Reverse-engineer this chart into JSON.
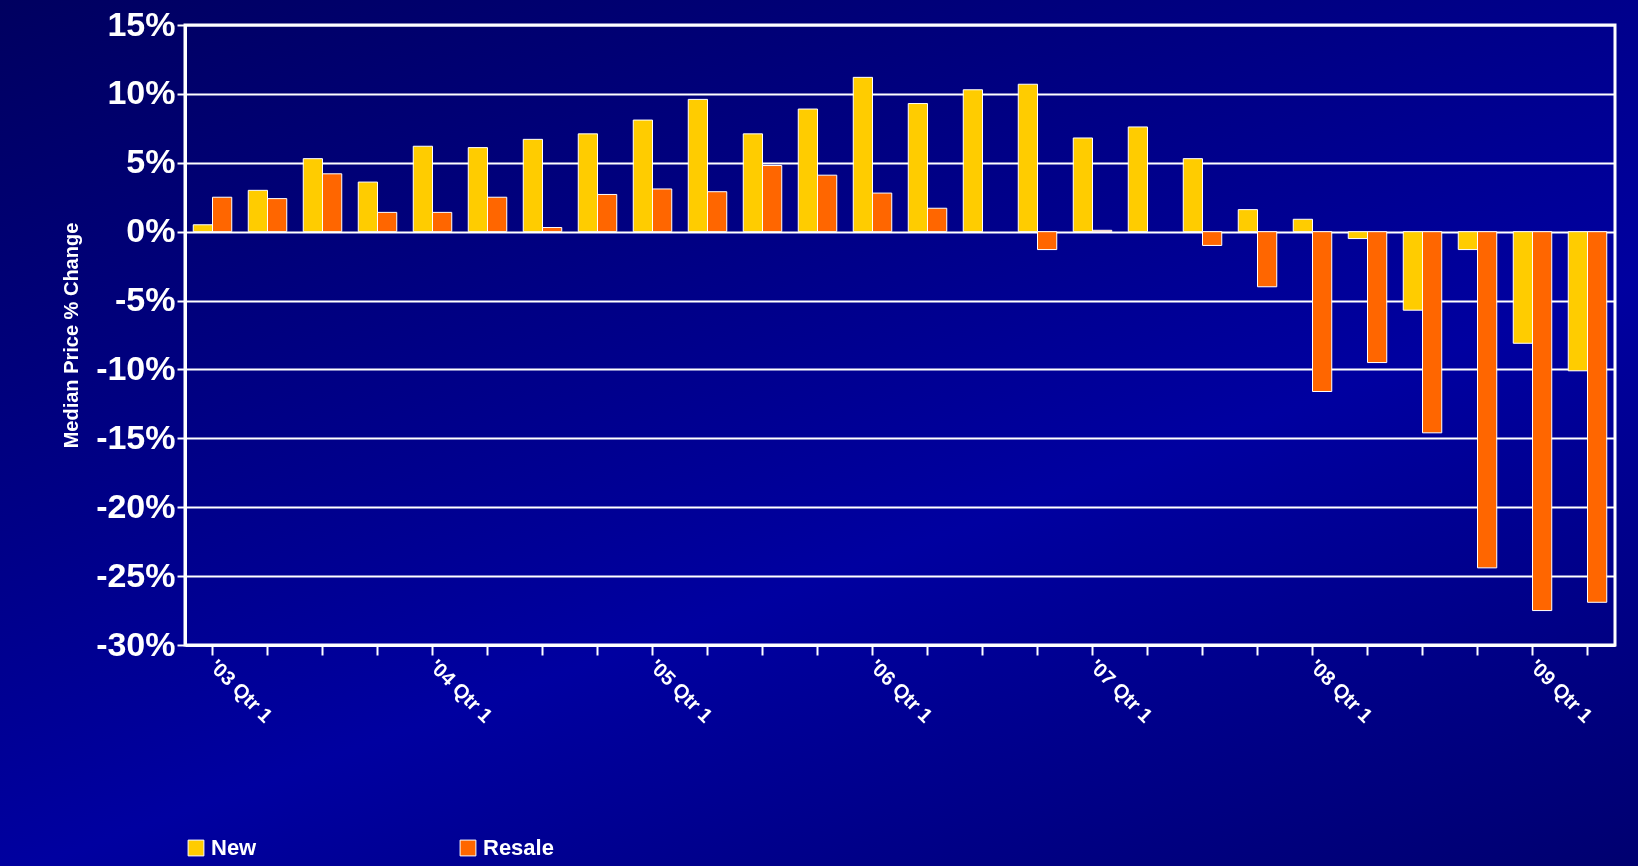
{
  "chart_data": {
    "type": "bar",
    "ylabel": "Median Price % Change",
    "categories": [
      "'03 Qtr 1",
      null,
      null,
      null,
      "'04 Qtr 1",
      null,
      null,
      null,
      "'05 Qtr 1",
      null,
      null,
      null,
      "'06 Qtr 1",
      null,
      null,
      null,
      "'07 Qtr 1",
      null,
      null,
      null,
      "'08 Qtr 1",
      null,
      null,
      null,
      "'09 Qtr 1",
      null
    ],
    "series": [
      {
        "name": "New",
        "color": "#ffcc00",
        "values": [
          0.5,
          3.0,
          5.3,
          3.6,
          6.2,
          6.1,
          6.7,
          7.1,
          8.1,
          9.6,
          7.1,
          8.9,
          11.2,
          9.3,
          10.3,
          10.7,
          6.8,
          7.6,
          5.3,
          1.6,
          0.9,
          -0.5,
          -5.7,
          -1.3,
          -8.1,
          -10.1
        ]
      },
      {
        "name": "Resale",
        "color": "#ff6600",
        "values": [
          2.5,
          2.4,
          4.2,
          1.4,
          1.4,
          2.5,
          0.3,
          2.7,
          3.1,
          2.9,
          4.8,
          4.1,
          2.8,
          1.7,
          null,
          -1.3,
          0.1,
          null,
          -1.0,
          -4.0,
          -11.6,
          -9.5,
          -14.6,
          -24.4,
          -27.5,
          -26.9
        ]
      }
    ],
    "ylim": [
      -30,
      15
    ],
    "yticks": [
      {
        "value": -30,
        "label": "-30%"
      },
      {
        "value": -25,
        "label": "-25%"
      },
      {
        "value": -20,
        "label": "-20%"
      },
      {
        "value": -15,
        "label": "-15%"
      },
      {
        "value": -10,
        "label": "-10%"
      },
      {
        "value": -5,
        "label": "-5%"
      },
      {
        "value": 0,
        "label": "0%"
      },
      {
        "value": 5,
        "label": "5%"
      },
      {
        "value": 10,
        "label": "10%"
      },
      {
        "value": 15,
        "label": "15%"
      }
    ],
    "grid": "y",
    "legend": "bottom"
  }
}
